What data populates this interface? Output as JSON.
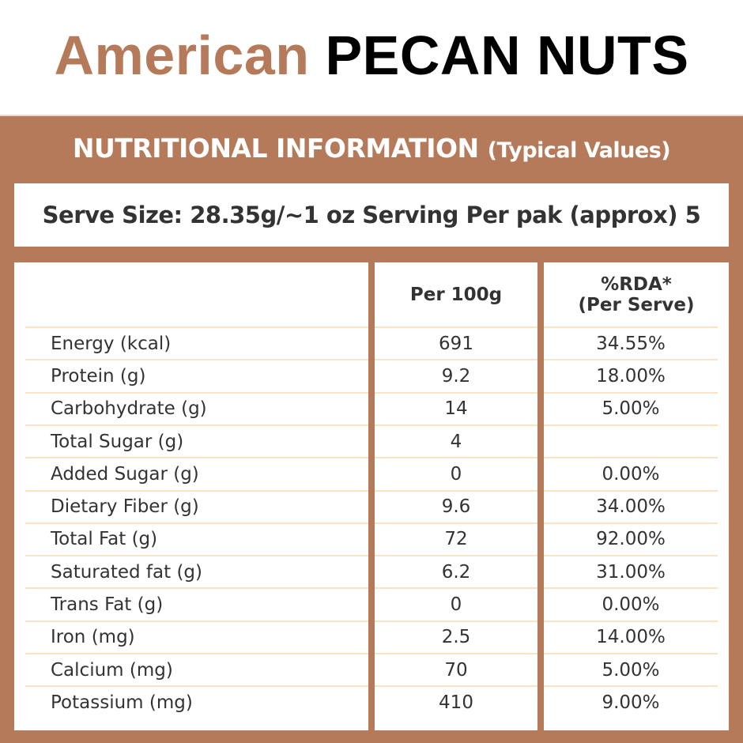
{
  "title": {
    "part1": "American",
    "part2": "PECAN NUTS"
  },
  "header": {
    "main": "NUTRITIONAL INFORMATION",
    "sub": "(Typical Values)"
  },
  "serve": "Serve Size: 28.35g/~1 oz Serving Per pak (approx) 5",
  "columns": {
    "per100": "Per 100g",
    "rda_line1": "%RDA*",
    "rda_line2": "(Per Serve)"
  },
  "colors": {
    "brand": "#b57a5a",
    "divider": "#fbe3c4"
  },
  "rows": [
    {
      "name": "Energy (kcal)",
      "per100": "691",
      "rda": "34.55%"
    },
    {
      "name": "Protein (g)",
      "per100": "9.2",
      "rda": "18.00%"
    },
    {
      "name": "Carbohydrate (g)",
      "per100": "14",
      "rda": "5.00%"
    },
    {
      "name": "Total Sugar (g)",
      "per100": "4",
      "rda": ""
    },
    {
      "name": "Added Sugar (g)",
      "per100": "0",
      "rda": "0.00%"
    },
    {
      "name": "Dietary Fiber (g)",
      "per100": "9.6",
      "rda": "34.00%"
    },
    {
      "name": "Total Fat (g)",
      "per100": "72",
      "rda": "92.00%"
    },
    {
      "name": "Saturated fat (g)",
      "per100": "6.2",
      "rda": "31.00%"
    },
    {
      "name": "Trans Fat (g)",
      "per100": "0",
      "rda": "0.00%"
    },
    {
      "name": "Iron (mg)",
      "per100": "2.5",
      "rda": "14.00%"
    },
    {
      "name": "Calcium (mg)",
      "per100": "70",
      "rda": "5.00%"
    },
    {
      "name": "Potassium (mg)",
      "per100": "410",
      "rda": "9.00%"
    }
  ]
}
